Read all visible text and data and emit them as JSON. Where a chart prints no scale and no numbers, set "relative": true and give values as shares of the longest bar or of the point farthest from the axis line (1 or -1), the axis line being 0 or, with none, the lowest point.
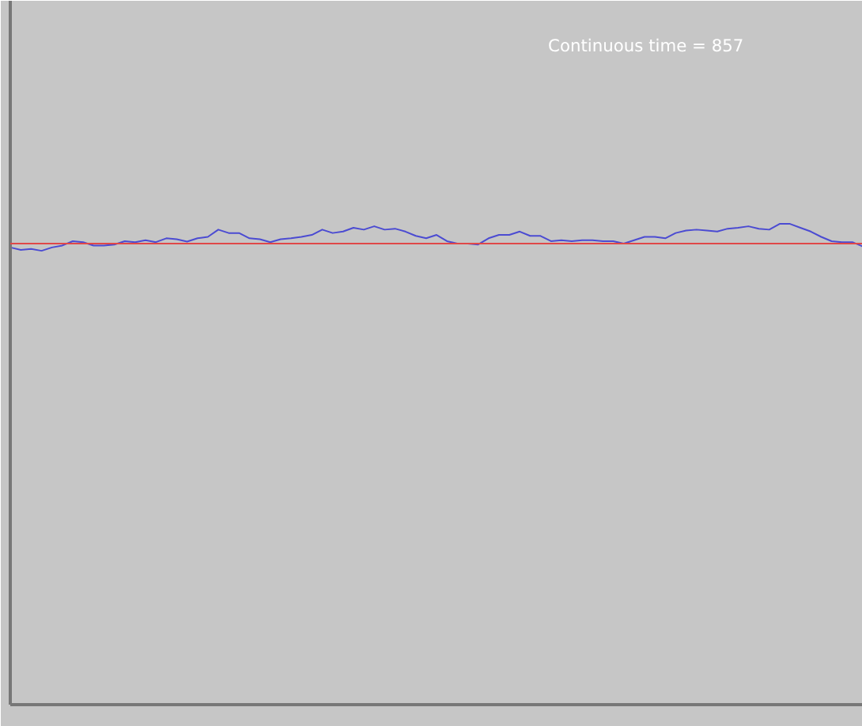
{
  "chart_data": {
    "type": "line",
    "relative": true,
    "categories": [
      null,
      null,
      null,
      null,
      null,
      null,
      null,
      null,
      null,
      null,
      null,
      null,
      null,
      null,
      null,
      null,
      null,
      null,
      null,
      null,
      null,
      null,
      null,
      null,
      null,
      null,
      null,
      null,
      null,
      null,
      null,
      null,
      null,
      null,
      null,
      null,
      null,
      null,
      null,
      null,
      null,
      null,
      null,
      null,
      null,
      null,
      null,
      null,
      null,
      null,
      null,
      null,
      null,
      null,
      null,
      null,
      null,
      null,
      null,
      null,
      null,
      null,
      null,
      null,
      null,
      null,
      null,
      null,
      null,
      null,
      null,
      null,
      null,
      null,
      null,
      null,
      null,
      null,
      null,
      null,
      null,
      null,
      null
    ],
    "series": [
      {
        "color": "#4b4bd2",
        "values": [
          0.951,
          0.946,
          0.948,
          0.944,
          0.951,
          0.955,
          0.964,
          0.962,
          0.955,
          0.955,
          0.957,
          0.964,
          0.962,
          0.966,
          0.962,
          0.97,
          0.968,
          0.963,
          0.97,
          0.973,
          0.988,
          0.981,
          0.981,
          0.97,
          0.968,
          0.962,
          0.968,
          0.97,
          0.973,
          0.977,
          0.988,
          0.981,
          0.984,
          0.992,
          0.988,
          0.995,
          0.988,
          0.99,
          0.984,
          0.975,
          0.97,
          0.977,
          0.964,
          0.959,
          0.959,
          0.957,
          0.97,
          0.977,
          0.977,
          0.984,
          0.975,
          0.975,
          0.964,
          0.966,
          0.964,
          0.966,
          0.966,
          0.964,
          0.964,
          0.959,
          0.966,
          0.973,
          0.973,
          0.97,
          0.981,
          0.986,
          0.988,
          0.986,
          0.984,
          0.99,
          0.992,
          0.995,
          0.99,
          0.988,
          1.0,
          1.0,
          0.992,
          0.984,
          0.973,
          0.964,
          0.962,
          0.962,
          0.953
        ]
      }
    ],
    "ref_lines": [
      {
        "axis": "y",
        "value": 0.959,
        "color": "#e04848"
      }
    ],
    "annotations": [
      "Continuous time = 857"
    ],
    "grid": false,
    "marker": "none",
    "line_style": "solid"
  }
}
